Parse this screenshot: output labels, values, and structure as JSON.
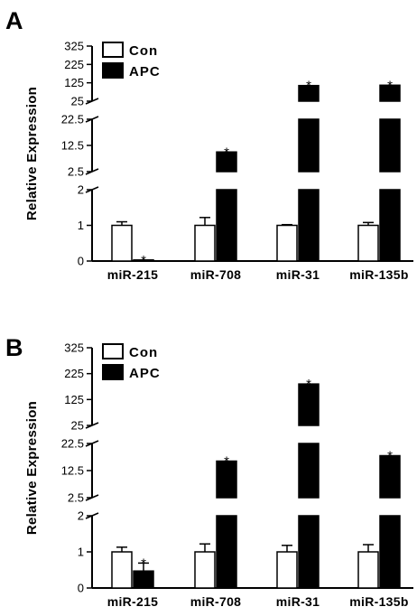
{
  "chart_data": [
    {
      "panel_label": "A",
      "type": "bar",
      "ylabel": "Relative Expression",
      "categories": [
        "miR-215",
        "miR-708",
        "miR-31",
        "miR-135b"
      ],
      "series": [
        {
          "name": "Con",
          "values": [
            1.0,
            1.0,
            1.0,
            1.0
          ],
          "errors": [
            0.1,
            0.22,
            0.02,
            0.08
          ],
          "color": "#ffffff"
        },
        {
          "name": "APC",
          "values": [
            0.02,
            10.0,
            110,
            112
          ],
          "errors": [
            0,
            0,
            0,
            0
          ],
          "color": "#000000"
        }
      ],
      "significance": [
        {
          "category": "miR-215",
          "series": "APC",
          "label": "*"
        },
        {
          "category": "miR-708",
          "series": "APC",
          "label": "*"
        },
        {
          "category": "miR-31",
          "series": "APC",
          "label": "*"
        },
        {
          "category": "miR-135b",
          "series": "APC",
          "label": "*"
        }
      ],
      "y_axis_segments": [
        {
          "range": [
            0,
            2
          ],
          "ticks": [
            "0",
            "1",
            "2"
          ]
        },
        {
          "range": [
            2.5,
            22.5
          ],
          "ticks": [
            "2.5",
            "12.5",
            "22.5"
          ]
        },
        {
          "range": [
            25,
            325
          ],
          "ticks": [
            "25",
            "125",
            "225",
            "325"
          ]
        }
      ],
      "legend": {
        "placement": "top-left",
        "entries": [
          "Con",
          "APC"
        ]
      },
      "grid": false
    },
    {
      "panel_label": "B",
      "type": "bar",
      "ylabel": "Relative Expression",
      "categories": [
        "miR-215",
        "miR-708",
        "miR-31",
        "miR-135b"
      ],
      "series": [
        {
          "name": "Con",
          "values": [
            1.0,
            1.0,
            1.0,
            1.0
          ],
          "errors": [
            0.13,
            0.22,
            0.18,
            0.2
          ],
          "color": "#ffffff"
        },
        {
          "name": "APC",
          "values": [
            0.47,
            16.0,
            185,
            18.0
          ],
          "errors": [
            0.22,
            0,
            0,
            0
          ],
          "color": "#000000"
        }
      ],
      "significance": [
        {
          "category": "miR-215",
          "series": "APC",
          "label": "*"
        },
        {
          "category": "miR-708",
          "series": "APC",
          "label": "*"
        },
        {
          "category": "miR-31",
          "series": "APC",
          "label": "*"
        },
        {
          "category": "miR-135b",
          "series": "APC",
          "label": "*"
        }
      ],
      "y_axis_segments": [
        {
          "range": [
            0,
            2
          ],
          "ticks": [
            "0",
            "1",
            "2"
          ]
        },
        {
          "range": [
            2.5,
            22.5
          ],
          "ticks": [
            "2.5",
            "12.5",
            "22.5"
          ]
        },
        {
          "range": [
            25,
            325
          ],
          "ticks": [
            "25",
            "125",
            "225",
            "325"
          ]
        }
      ],
      "legend": {
        "placement": "top-left",
        "entries": [
          "Con",
          "APC"
        ]
      },
      "grid": false
    }
  ]
}
